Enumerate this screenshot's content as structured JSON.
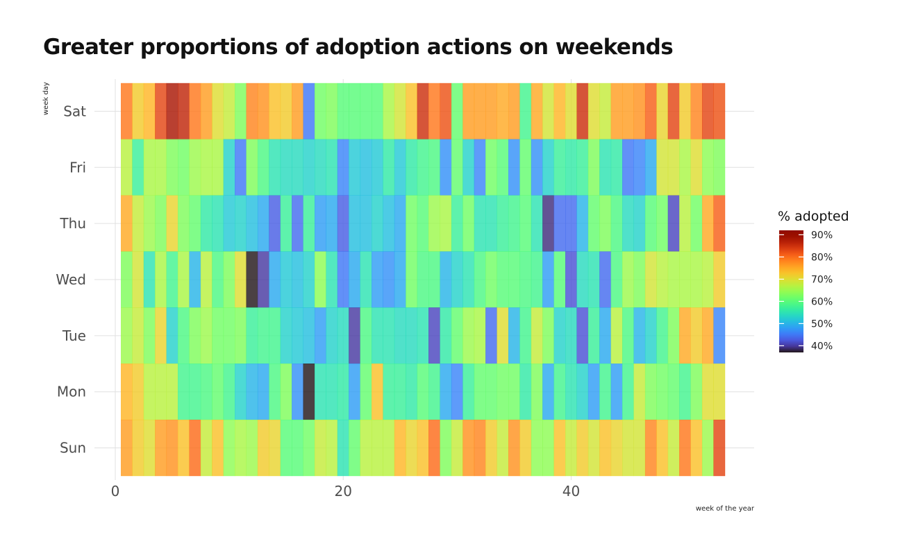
{
  "chart_data": {
    "type": "heatmap",
    "title": "Greater proportions of adoption actions on weekends",
    "xlabel": "week of the year",
    "ylabel": "week day",
    "x_ticks": [
      0,
      20,
      40
    ],
    "xlim": [
      0,
      56
    ],
    "weeks": [
      1,
      2,
      3,
      4,
      5,
      6,
      7,
      8,
      9,
      10,
      11,
      12,
      13,
      14,
      15,
      16,
      17,
      18,
      19,
      20,
      21,
      22,
      23,
      24,
      25,
      26,
      27,
      28,
      29,
      30,
      31,
      32,
      33,
      34,
      35,
      36,
      37,
      38,
      39,
      40,
      41,
      42,
      43,
      44,
      45,
      46,
      47,
      48,
      49,
      50,
      51,
      52,
      53
    ],
    "days": [
      "Sat",
      "Fri",
      "Thu",
      "Wed",
      "Tue",
      "Mon",
      "Sun"
    ],
    "values": {
      "Sat": [
        79,
        72,
        74,
        83,
        88,
        86,
        79,
        76,
        70,
        68,
        63,
        78,
        77,
        73,
        72,
        76,
        45,
        62,
        63,
        60,
        60,
        60,
        60,
        66,
        69,
        73,
        85,
        79,
        82,
        61,
        76,
        76,
        76,
        75,
        76,
        58,
        75,
        69,
        74,
        70,
        85,
        70,
        68,
        76,
        76,
        77,
        81,
        71,
        83,
        72,
        78,
        83,
        82
      ],
      "Fri": [
        67,
        57,
        66,
        66,
        63,
        62,
        65,
        66,
        66,
        53,
        45,
        63,
        59,
        55,
        54,
        54,
        53,
        54,
        55,
        46,
        52,
        51,
        52,
        56,
        52,
        56,
        58,
        59,
        47,
        61,
        53,
        46,
        62,
        60,
        47,
        61,
        47,
        53,
        57,
        56,
        57,
        63,
        55,
        56,
        45,
        46,
        49,
        69,
        69,
        66,
        70,
        64,
        63
      ],
      "Thu": [
        75,
        68,
        65,
        63,
        71,
        63,
        61,
        56,
        55,
        52,
        53,
        51,
        49,
        43,
        57,
        44,
        57,
        48,
        49,
        43,
        51,
        51,
        53,
        51,
        49,
        62,
        60,
        65,
        66,
        57,
        62,
        55,
        55,
        57,
        58,
        60,
        55,
        39,
        44,
        44,
        50,
        61,
        63,
        59,
        54,
        53,
        60,
        62,
        41,
        67,
        62,
        75,
        81
      ],
      "Wed": [
        63,
        69,
        55,
        66,
        58,
        66,
        50,
        67,
        59,
        63,
        70,
        37,
        40,
        49,
        52,
        51,
        53,
        64,
        55,
        45,
        49,
        55,
        48,
        47,
        49,
        62,
        59,
        59,
        50,
        53,
        55,
        59,
        62,
        60,
        60,
        59,
        58,
        48,
        60,
        42,
        54,
        55,
        44,
        59,
        65,
        63,
        69,
        67,
        66,
        66,
        66,
        67,
        72
      ],
      "Tue": [
        65,
        68,
        63,
        71,
        53,
        59,
        63,
        65,
        62,
        62,
        63,
        57,
        58,
        58,
        53,
        52,
        51,
        48,
        53,
        54,
        40,
        59,
        55,
        55,
        54,
        54,
        55,
        41,
        56,
        61,
        65,
        66,
        44,
        70,
        50,
        58,
        68,
        63,
        53,
        54,
        42,
        57,
        49,
        67,
        59,
        50,
        53,
        58,
        63,
        75,
        72,
        75,
        46
      ],
      "Mon": [
        74,
        72,
        67,
        67,
        67,
        58,
        58,
        59,
        61,
        58,
        53,
        50,
        49,
        59,
        63,
        47,
        37,
        55,
        55,
        56,
        48,
        61,
        73,
        57,
        57,
        56,
        60,
        58,
        49,
        46,
        57,
        61,
        61,
        62,
        62,
        56,
        63,
        49,
        58,
        55,
        53,
        48,
        58,
        48,
        58,
        68,
        63,
        62,
        61,
        58,
        63,
        70,
        70
      ],
      "Sun": [
        76,
        72,
        70,
        76,
        77,
        73,
        80,
        68,
        73,
        64,
        66,
        65,
        72,
        71,
        60,
        60,
        62,
        68,
        67,
        55,
        61,
        67,
        67,
        67,
        74,
        71,
        73,
        80,
        63,
        68,
        77,
        78,
        72,
        68,
        77,
        72,
        64,
        64,
        73,
        68,
        72,
        69,
        73,
        71,
        69,
        69,
        78,
        73,
        68,
        79,
        73,
        65,
        83
      ]
    },
    "color_scale": {
      "title": "% adopted",
      "min": 37,
      "max": 92,
      "ticks": [
        90,
        80,
        70,
        60,
        50,
        40
      ],
      "tick_labels": [
        "90%",
        "80%",
        "70%",
        "60%",
        "50%",
        "40%"
      ],
      "palette": "turbo"
    },
    "grid": true,
    "legend_position": "right"
  }
}
